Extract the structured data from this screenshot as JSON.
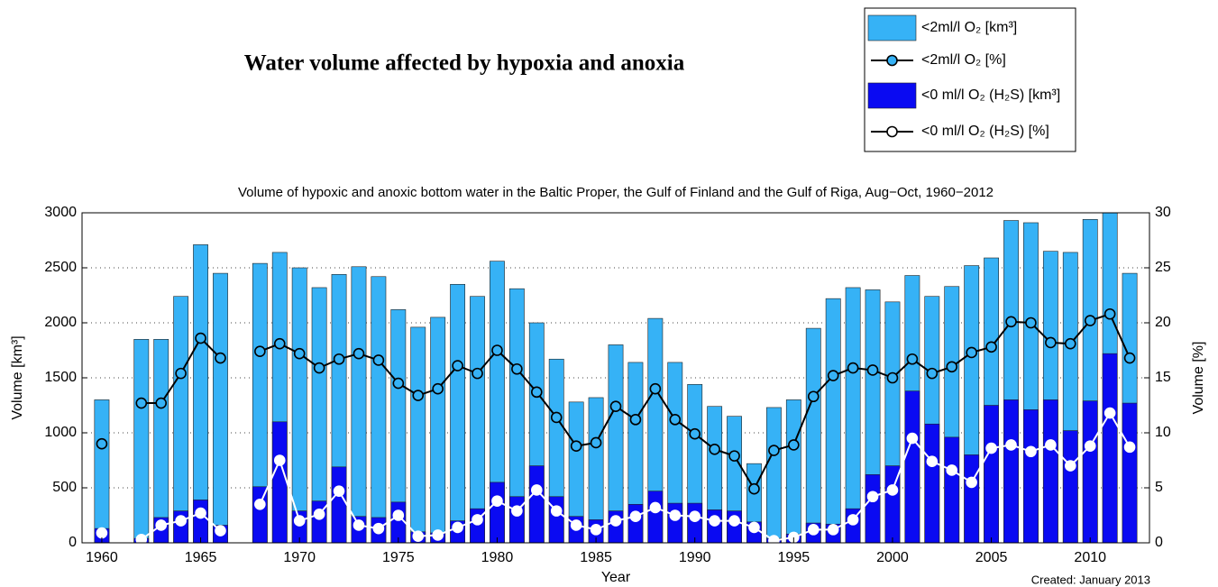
{
  "chart_data": {
    "type": "bar",
    "title": "Water volume affected by hypoxia and anoxia",
    "subtitle": "Volume of hypoxic and anoxic bottom water in the Baltic Proper, the Gulf of Finland and the Gulf of Riga, Aug−Oct, 1960−2012",
    "x_label": "Year",
    "y_label": "Volume [km³]",
    "y2_label": "Volume [%]",
    "annotation": "Created: January 2013",
    "x": [
      1960,
      1961,
      1962,
      1963,
      1964,
      1965,
      1966,
      1967,
      1968,
      1969,
      1970,
      1971,
      1972,
      1973,
      1974,
      1975,
      1976,
      1977,
      1978,
      1979,
      1980,
      1981,
      1982,
      1983,
      1984,
      1985,
      1986,
      1987,
      1988,
      1989,
      1990,
      1991,
      1992,
      1993,
      1994,
      1995,
      1996,
      1997,
      1998,
      1999,
      2000,
      2001,
      2002,
      2003,
      2004,
      2005,
      2006,
      2007,
      2008,
      2009,
      2010,
      2011,
      2012
    ],
    "xlim": [
      1959,
      2013
    ],
    "xticks": [
      1960,
      1965,
      1970,
      1975,
      1980,
      1985,
      1990,
      1995,
      2000,
      2005,
      2010
    ],
    "ylim": [
      0,
      3000
    ],
    "yticks": [
      0,
      500,
      1000,
      1500,
      2000,
      2500,
      3000
    ],
    "y2lim": [
      0,
      30
    ],
    "y2ticks": [
      0,
      5,
      10,
      15,
      20,
      25,
      30
    ],
    "grid": true,
    "series": [
      {
        "name": "<2ml/l O₂ [km³]",
        "type": "bar",
        "color": "#36b2f6",
        "values": [
          1300,
          null,
          1850,
          1850,
          2240,
          2710,
          2450,
          null,
          2540,
          2640,
          2500,
          2320,
          2440,
          2510,
          2420,
          2120,
          1960,
          2050,
          2350,
          2240,
          2560,
          2310,
          2000,
          1670,
          1280,
          1320,
          1800,
          1640,
          2040,
          1640,
          1440,
          1240,
          1150,
          720,
          1230,
          1300,
          1950,
          2220,
          2320,
          2300,
          2190,
          2430,
          2240,
          2330,
          2520,
          2590,
          2930,
          2910,
          2650,
          2640,
          2940,
          3000,
          2450
        ]
      },
      {
        "name": "<2ml/l O₂ [%]",
        "type": "line",
        "axis": "y2",
        "color": "#000000",
        "marker_color": "#36b2f6",
        "values": [
          9.0,
          null,
          12.7,
          12.7,
          15.4,
          18.6,
          16.8,
          null,
          17.4,
          18.1,
          17.2,
          15.9,
          16.7,
          17.2,
          16.6,
          14.5,
          13.4,
          14.0,
          16.1,
          15.4,
          17.5,
          15.8,
          13.7,
          11.4,
          8.8,
          9.1,
          12.4,
          11.2,
          14.0,
          11.2,
          9.9,
          8.5,
          7.9,
          4.9,
          8.4,
          8.9,
          13.3,
          15.2,
          15.9,
          15.7,
          15.0,
          16.7,
          15.4,
          16.0,
          17.3,
          17.8,
          20.1,
          20.0,
          18.2,
          18.1,
          20.2,
          20.8,
          16.8
        ]
      },
      {
        "name": "<0 ml/l O₂ (H₂S) [km³]",
        "type": "bar",
        "color": "#0a0af2",
        "values": [
          130,
          null,
          40,
          230,
          290,
          390,
          160,
          null,
          510,
          1100,
          290,
          380,
          690,
          240,
          230,
          370,
          100,
          90,
          200,
          310,
          550,
          420,
          700,
          420,
          240,
          210,
          290,
          350,
          470,
          360,
          360,
          300,
          290,
          190,
          40,
          80,
          180,
          170,
          310,
          620,
          700,
          1380,
          1080,
          960,
          800,
          1250,
          1300,
          1210,
          1300,
          1020,
          1290,
          1720,
          1270
        ]
      },
      {
        "name": "<0 ml/l O₂ (H₂S) [%]",
        "type": "line",
        "axis": "y2",
        "color": "#ffffff",
        "marker_color": "#ffffff",
        "values": [
          0.9,
          null,
          0.3,
          1.6,
          2.0,
          2.7,
          1.1,
          null,
          3.5,
          7.5,
          2.0,
          2.6,
          4.7,
          1.6,
          1.3,
          2.5,
          0.6,
          0.7,
          1.4,
          2.1,
          3.8,
          2.9,
          4.8,
          2.9,
          1.6,
          1.2,
          2.0,
          2.4,
          3.2,
          2.5,
          2.4,
          2.0,
          2.0,
          1.4,
          0.2,
          0.5,
          1.2,
          1.2,
          2.1,
          4.2,
          4.8,
          9.5,
          7.4,
          6.6,
          5.5,
          8.6,
          8.9,
          8.3,
          8.9,
          7.0,
          8.8,
          11.8,
          8.7
        ]
      }
    ]
  }
}
